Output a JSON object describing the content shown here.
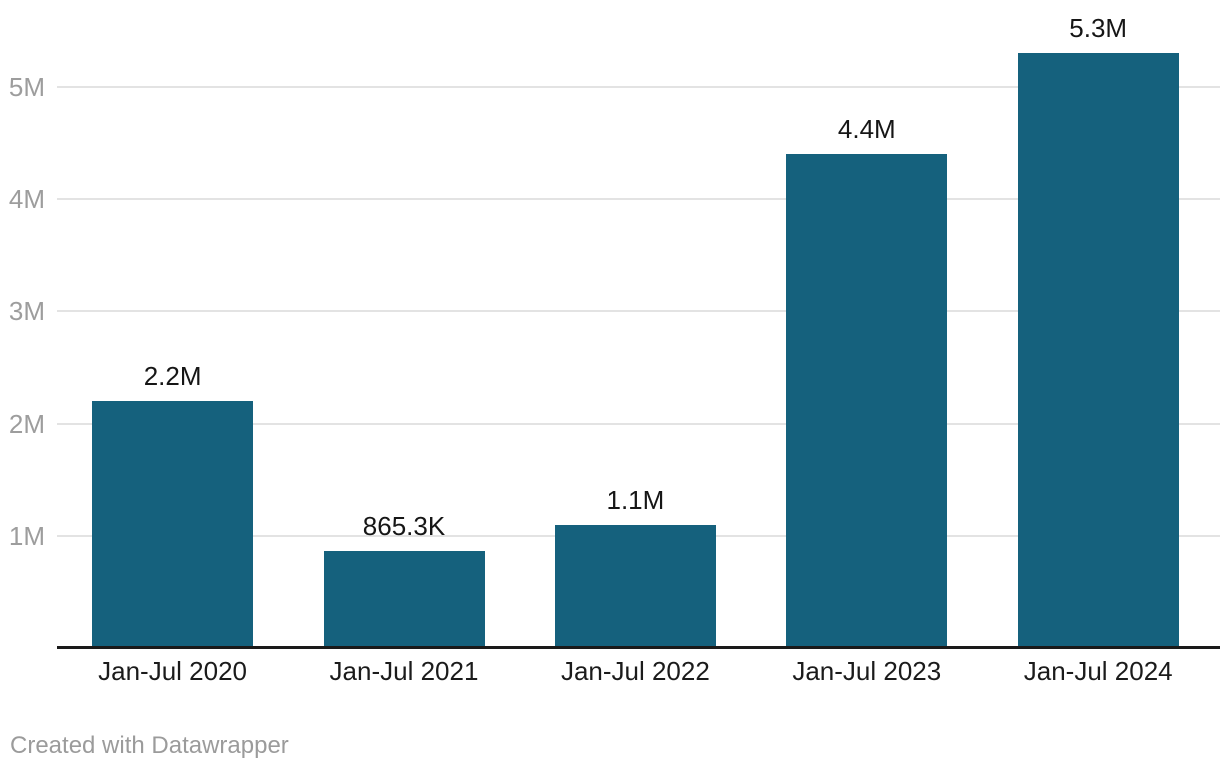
{
  "chart_data": {
    "type": "bar",
    "title": "",
    "categories": [
      "Jan-Jul 2020",
      "Jan-Jul 2021",
      "Jan-Jul 2022",
      "Jan-Jul 2023",
      "Jan-Jul 2024"
    ],
    "values": [
      2200000,
      865300,
      1100000,
      4400000,
      5300000
    ],
    "value_labels": [
      "2.2M",
      "865.3K",
      "1.1M",
      "4.4M",
      "5.3M"
    ],
    "yticks": [
      {
        "value": 1000000,
        "label": "1M"
      },
      {
        "value": 2000000,
        "label": "2M"
      },
      {
        "value": 3000000,
        "label": "3M"
      },
      {
        "value": 4000000,
        "label": "4M"
      },
      {
        "value": 5000000,
        "label": "5M"
      }
    ],
    "ylim": [
      0,
      5780000
    ],
    "grid": true,
    "legend_position": "none",
    "colors": {
      "bar": "#15617d",
      "gridline": "#e3e3e3",
      "axis_line": "#1a1a1a",
      "tick_label": "#9d9d9d",
      "value_label": "#161616",
      "category_label": "#1b1b1b"
    }
  },
  "footer": {
    "attribution": "Created with Datawrapper"
  }
}
